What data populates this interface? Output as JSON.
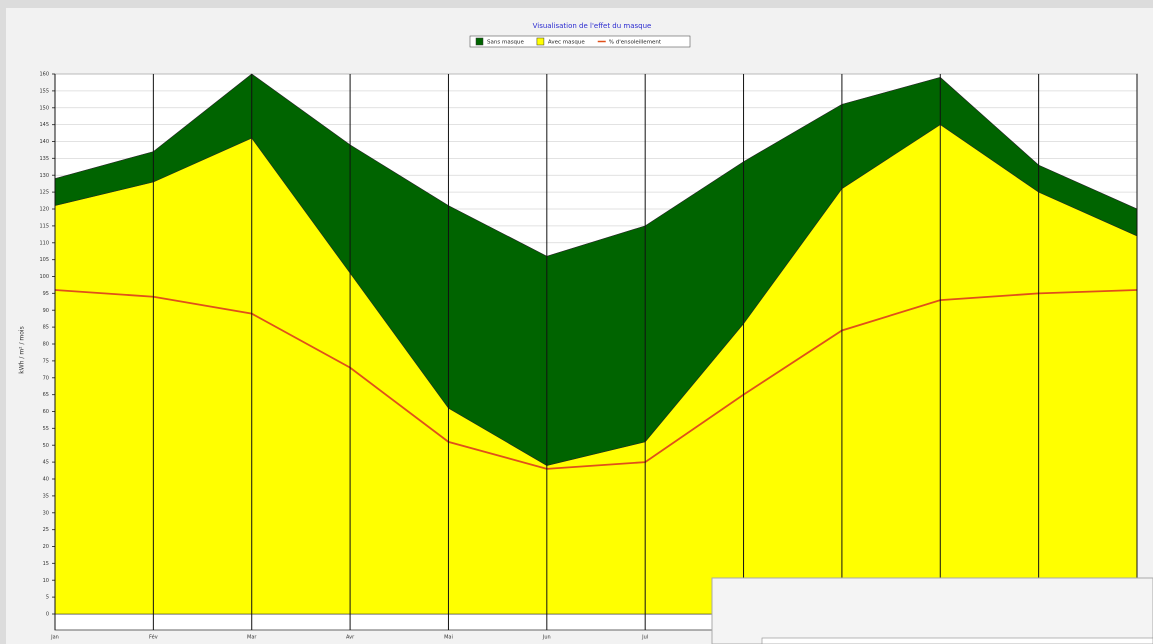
{
  "chart_data": {
    "type": "area",
    "title": "Visualisation de l'effet du masque",
    "y_label": "kWh / m² / mois",
    "categories": [
      "Jan",
      "Fév",
      "Mar",
      "Avr",
      "Mai",
      "Jun",
      "Jul",
      null,
      null,
      null,
      null,
      null
    ],
    "series": [
      {
        "name": "Sans masque",
        "color": "#006400",
        "kind": "area",
        "values": [
          129,
          137,
          160,
          139,
          121,
          106,
          115,
          134,
          151,
          159,
          133,
          120
        ]
      },
      {
        "name": "Avec masque",
        "color": "#ffff00",
        "kind": "area",
        "values": [
          121,
          128,
          141,
          101,
          61,
          44,
          51,
          86,
          126,
          145,
          125,
          112
        ]
      },
      {
        "name": "% d'ensoleillement",
        "color": "#e0501a",
        "kind": "line",
        "values": [
          96,
          94,
          89,
          73,
          51,
          43,
          45,
          65,
          84,
          93,
          95,
          96
        ]
      }
    ],
    "ylim": [
      0,
      160
    ],
    "yticks": [
      0,
      5,
      10,
      15,
      20,
      25,
      30,
      35,
      40,
      45,
      50,
      55,
      60,
      65,
      70,
      75,
      80,
      85,
      90,
      95,
      100,
      105,
      110,
      115,
      120,
      125,
      130,
      135,
      140,
      145,
      150,
      155,
      160
    ],
    "grid": true,
    "legend": "top"
  }
}
